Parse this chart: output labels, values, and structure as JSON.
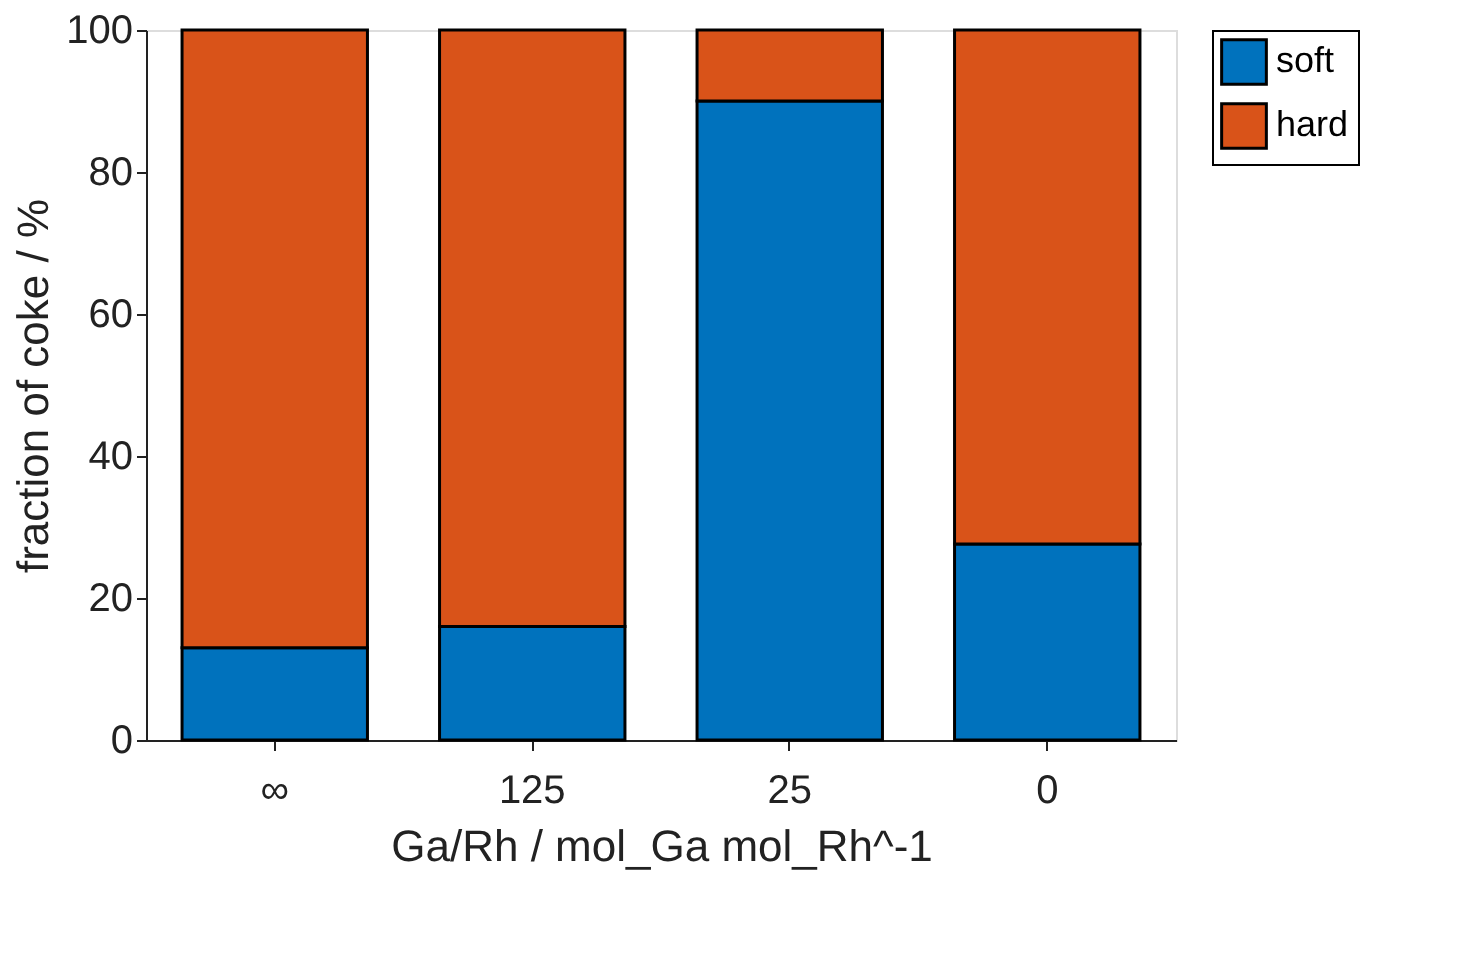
{
  "chart_data": {
    "type": "bar",
    "stacked": true,
    "categories": [
      "∞",
      "125",
      "25",
      "0"
    ],
    "series": [
      {
        "name": "soft",
        "color": "#0072bd",
        "values": [
          13,
          16,
          90,
          27.6
        ]
      },
      {
        "name": "hard",
        "color": "#d95319",
        "values": [
          87,
          84,
          10,
          72.4
        ]
      }
    ],
    "xlabel": "Ga/Rh / mol_Ga mol_Rh^-1",
    "ylabel": "fraction of coke / %",
    "ylim": [
      0,
      100
    ],
    "yticks": [
      0,
      20,
      40,
      60,
      80,
      100
    ],
    "grid": false,
    "legend": "right"
  }
}
